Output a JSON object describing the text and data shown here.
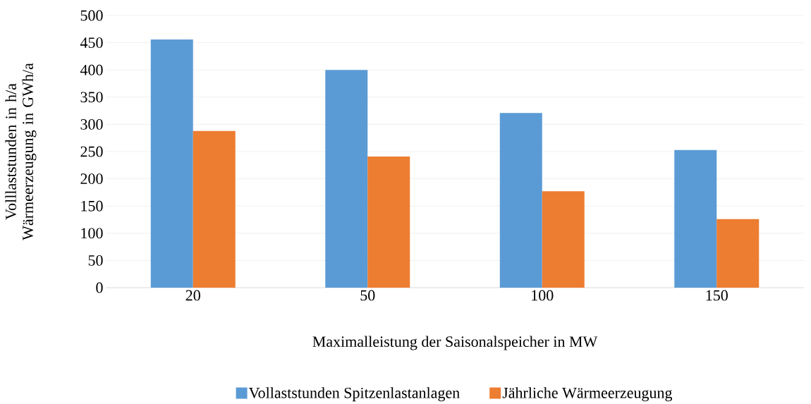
{
  "chart_data": {
    "type": "bar",
    "xlabel": "Maximalleistung der Saisonalspeicher in MW",
    "ylabel": "Volllaststunden in h/a Wärmeerzeugung in GWh/a",
    "categories": [
      "20",
      "50",
      "100",
      "150"
    ],
    "series": [
      {
        "name": "Vollaststunden Spitzenlastanlagen",
        "color": "#5b9bd5",
        "values": [
          456,
          400,
          321,
          253
        ]
      },
      {
        "name": "Jährliche Wärmeerzeugung",
        "color": "#ed7d31",
        "values": [
          288,
          241,
          177,
          126
        ]
      }
    ],
    "ylim": [
      0,
      500
    ],
    "yticks": [
      0,
      50,
      100,
      150,
      200,
      250,
      300,
      350,
      400,
      450,
      500
    ],
    "grid": "y",
    "legend": "bottom"
  }
}
